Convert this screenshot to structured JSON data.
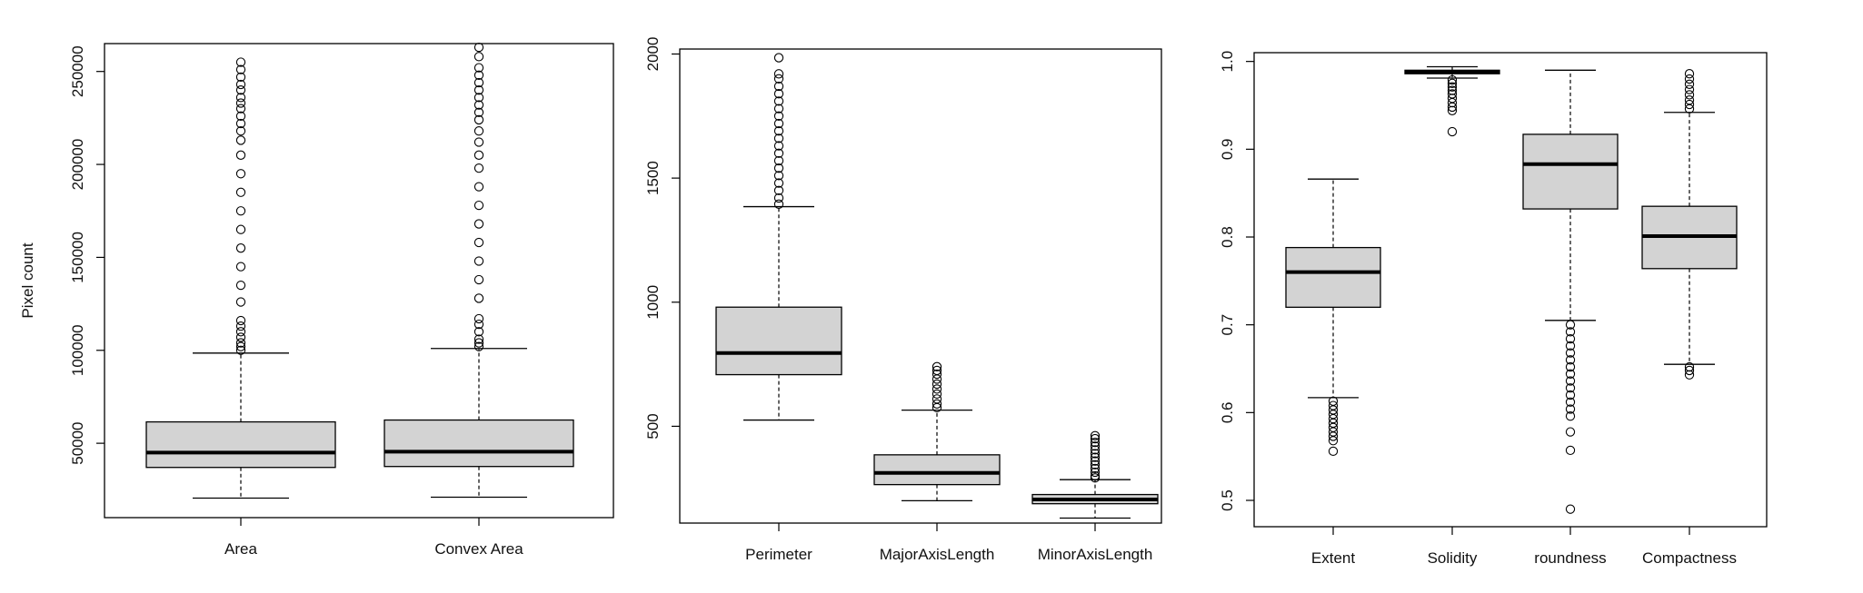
{
  "chart_data": [
    {
      "type": "boxplot",
      "title": "",
      "xlabel": "",
      "ylabel": "Pixel count",
      "ylim": [
        10000,
        265000
      ],
      "yticks": [
        50000,
        100000,
        150000,
        200000,
        250000
      ],
      "ytick_labels": [
        "50000",
        "100000",
        "150000",
        "200000",
        "250000"
      ],
      "box_color": "#d3d3d3",
      "categories": [
        "Area",
        "Convex Area"
      ],
      "boxes": [
        {
          "name": "Area",
          "min": 20500,
          "q1": 37000,
          "median": 45000,
          "q3": 61500,
          "max": 98500,
          "outliers": [
            100000,
            102000,
            104000,
            107000,
            110000,
            113000,
            116000,
            126000,
            135000,
            145000,
            155000,
            165000,
            175000,
            185000,
            195000,
            205000,
            213000,
            218000,
            222000,
            226000,
            230000,
            233000,
            236000,
            240000,
            243000,
            247000,
            251000,
            255000
          ]
        },
        {
          "name": "Convex Area",
          "min": 21000,
          "q1": 37500,
          "median": 45500,
          "q3": 62500,
          "max": 101000,
          "outliers": [
            102000,
            104000,
            106000,
            110000,
            114000,
            117000,
            128000,
            138000,
            148000,
            158000,
            168000,
            178000,
            188000,
            198000,
            205000,
            212000,
            218000,
            224000,
            228000,
            232000,
            236000,
            240000,
            244000,
            248000,
            252000,
            258000,
            263000
          ]
        }
      ]
    },
    {
      "type": "boxplot",
      "title": "",
      "xlabel": "",
      "ylabel": "",
      "ylim": [
        110,
        2020
      ],
      "yticks": [
        500,
        1000,
        1500,
        2000
      ],
      "ytick_labels": [
        "500",
        "1000",
        "1500",
        "2000"
      ],
      "box_color": "#d3d3d3",
      "categories": [
        "Perimeter",
        "MajorAxisLength",
        "MinorAxisLength"
      ],
      "boxes": [
        {
          "name": "Perimeter",
          "min": 525,
          "q1": 708,
          "median": 795,
          "q3": 980,
          "max": 1385,
          "outliers": [
            1395,
            1420,
            1450,
            1480,
            1510,
            1540,
            1570,
            1600,
            1630,
            1660,
            1690,
            1720,
            1750,
            1780,
            1810,
            1840,
            1870,
            1900,
            1920,
            1985
          ]
        },
        {
          "name": "MajorAxisLength",
          "min": 200,
          "q1": 265,
          "median": 312,
          "q3": 385,
          "max": 565,
          "outliers": [
            575,
            590,
            610,
            630,
            650,
            670,
            690,
            710,
            725,
            740
          ]
        },
        {
          "name": "MinorAxisLength",
          "min": 130,
          "q1": 188,
          "median": 205,
          "q3": 225,
          "max": 285,
          "outliers": [
            292,
            300,
            315,
            330,
            345,
            360,
            375,
            390,
            405,
            420,
            435,
            450,
            462
          ]
        }
      ]
    },
    {
      "type": "boxplot",
      "title": "",
      "xlabel": "",
      "ylabel": "",
      "ylim": [
        0.47,
        1.01
      ],
      "yticks": [
        0.5,
        0.6,
        0.7,
        0.8,
        0.9,
        1.0
      ],
      "ytick_labels": [
        "0.5",
        "0.6",
        "0.7",
        "0.8",
        "0.9",
        "1.0"
      ],
      "box_color": "#d3d3d3",
      "categories": [
        "Extent",
        "Solidity",
        "roundness",
        "Compactness"
      ],
      "boxes": [
        {
          "name": "Extent",
          "min": 0.617,
          "q1": 0.72,
          "median": 0.76,
          "q3": 0.788,
          "max": 0.866,
          "outliers": [
            0.613,
            0.608,
            0.603,
            0.598,
            0.593,
            0.588,
            0.583,
            0.578,
            0.573,
            0.568,
            0.556
          ]
        },
        {
          "name": "Solidity",
          "min": 0.981,
          "q1": 0.986,
          "median": 0.988,
          "q3": 0.99,
          "max": 0.994,
          "outliers": [
            0.979,
            0.975,
            0.971,
            0.967,
            0.963,
            0.958,
            0.953,
            0.948,
            0.944,
            0.92
          ]
        },
        {
          "name": "roundness",
          "min": 0.705,
          "q1": 0.832,
          "median": 0.883,
          "q3": 0.917,
          "max": 0.99,
          "outliers": [
            0.7,
            0.692,
            0.684,
            0.676,
            0.668,
            0.66,
            0.652,
            0.644,
            0.636,
            0.628,
            0.62,
            0.612,
            0.604,
            0.596,
            0.578,
            0.557,
            0.49
          ]
        },
        {
          "name": "Compactness",
          "min": 0.655,
          "q1": 0.764,
          "median": 0.801,
          "q3": 0.835,
          "max": 0.942,
          "outliers": [
            0.652,
            0.648,
            0.643,
            0.946,
            0.951,
            0.956,
            0.962,
            0.968,
            0.974,
            0.98,
            0.986
          ]
        }
      ]
    }
  ]
}
